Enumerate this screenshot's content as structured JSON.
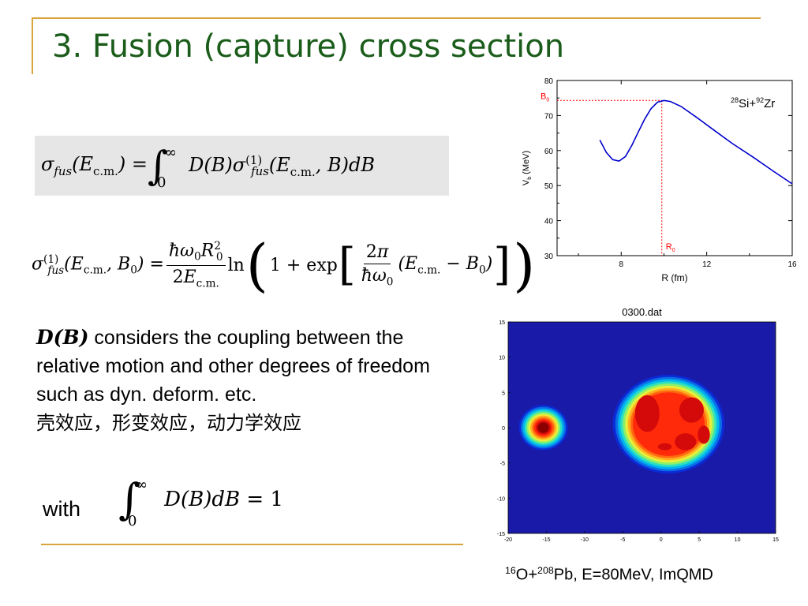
{
  "slide": {
    "title": "3. Fusion (capture) cross section",
    "accent_color": "#d9a53a",
    "title_color": "#1a5c1a"
  },
  "equations": {
    "sigma_fus": "σ_fus(E_c.m.) = ∫_0^∞ D(B) σ_fus^(1)(E_c.m., B) dB",
    "sigma_fus1": "σ_fus^(1)(E_c.m., B_0) = (ħω_0 R_0^2 / 2E_c.m.) ln(1 + exp[(2π/ħω_0)(E_c.m. − B_0)])",
    "normalization": "∫_0^∞ D(B) dB = 1"
  },
  "text": {
    "para_symbol": "D(B)",
    "para_rest": " considers the coupling between the relative motion and other degrees of freedom such as dyn. deform. etc.",
    "chinese_line": "壳效应，形变效应，动力学效应",
    "with_label": "with",
    "caption_main_1": "O+",
    "caption_main_2": "Pb, E=80MeV,  ImQMD",
    "caption_sup_1": "16",
    "caption_sup_2": "208"
  },
  "chart_data": [
    {
      "type": "line",
      "series_label": {
        "sup_a": "28",
        "text_a": "Si+",
        "sup_b": "92",
        "text_b": "Zr"
      },
      "xlabel": "R (fm)",
      "ylabel": "V",
      "ylabel_sub": "b",
      "ylabel_unit": " (MeV)",
      "xlim": [
        5,
        16
      ],
      "ylim": [
        30,
        80
      ],
      "xticks": [
        8,
        12,
        16
      ],
      "yticks": [
        30,
        40,
        50,
        60,
        70,
        80
      ],
      "line_color": "#0000cc",
      "ref_color": "#ff0000",
      "B0": 74.3,
      "R0": 9.9,
      "B0_label": "B",
      "B0_sub": "0",
      "R0_label": "R",
      "R0_sub": "0",
      "x": [
        7.0,
        7.3,
        7.6,
        7.9,
        8.2,
        8.5,
        8.8,
        9.1,
        9.4,
        9.7,
        10.0,
        10.3,
        10.8,
        11.5,
        12.3,
        13.2,
        14.2,
        15.1,
        16.0
      ],
      "y": [
        63.0,
        59.5,
        57.4,
        57.0,
        58.3,
        61.5,
        65.3,
        69.0,
        72.0,
        73.8,
        74.3,
        74.0,
        72.6,
        69.6,
        66.0,
        62.0,
        58.0,
        54.2,
        50.5
      ]
    },
    {
      "type": "heatmap",
      "title": "0300.dat",
      "xlim": [
        -20,
        15
      ],
      "ylim": [
        -15,
        15
      ],
      "xticks": [
        -20,
        -15,
        -10,
        -5,
        0,
        5,
        10,
        15
      ],
      "yticks": [
        15,
        10,
        5,
        0,
        -5,
        -10,
        -15
      ],
      "background": "#1a1aa8",
      "colormap": [
        "#0a2bd6",
        "#0a6fe6",
        "#00b4f0",
        "#2ce0c0",
        "#8ef06a",
        "#e8f03a",
        "#ffb020",
        "#ff6a10",
        "#ff2a0a",
        "#d40a0a",
        "#8a0000"
      ],
      "blobs": [
        {
          "name": "projectile",
          "cx": -15.4,
          "cy": 0.0,
          "r": 3.2,
          "core_levels": 11
        },
        {
          "name": "target",
          "cx": 1.0,
          "cy": 0.5,
          "rx": 7.3,
          "ry": 7.0,
          "core_levels": 9
        }
      ]
    }
  ]
}
